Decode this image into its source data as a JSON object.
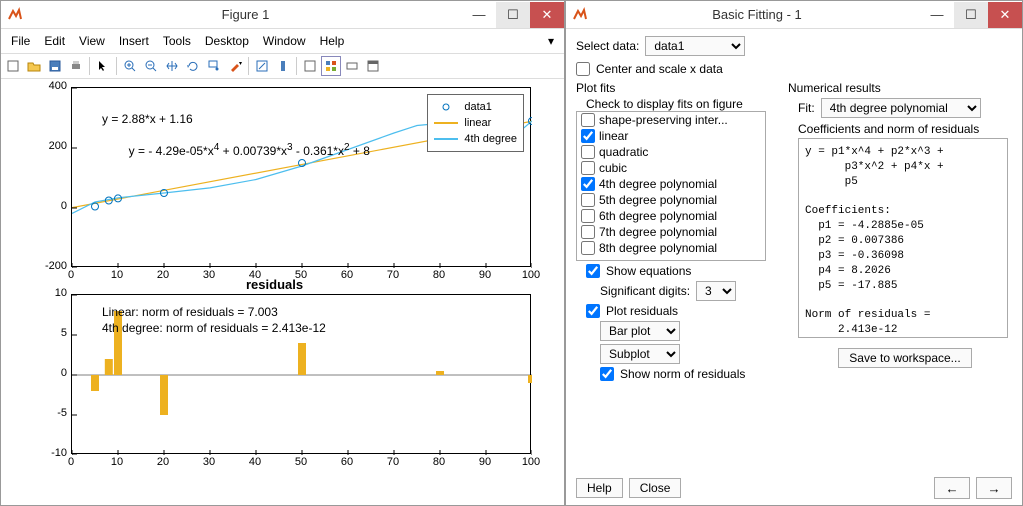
{
  "figure_window": {
    "title": "Figure 1",
    "menus": [
      "File",
      "Edit",
      "View",
      "Insert",
      "Tools",
      "Desktop",
      "Window",
      "Help"
    ],
    "top_chart": {
      "xlim": [
        0,
        100
      ],
      "ylim": [
        -200,
        400
      ],
      "xticks": [
        0,
        10,
        20,
        30,
        40,
        50,
        60,
        70,
        80,
        90,
        100
      ],
      "yticks": [
        -200,
        0,
        200,
        400
      ],
      "data_points": [
        [
          5,
          5
        ],
        [
          8,
          25
        ],
        [
          10,
          32
        ],
        [
          20,
          50
        ],
        [
          50,
          150
        ],
        [
          80,
          280
        ],
        [
          100,
          290
        ]
      ],
      "linear_fit": [
        [
          0,
          1.16
        ],
        [
          100,
          289.16
        ]
      ],
      "poly_fit": [
        [
          0,
          -18
        ],
        [
          5,
          20
        ],
        [
          10,
          34
        ],
        [
          20,
          50
        ],
        [
          30,
          67
        ],
        [
          40,
          95
        ],
        [
          50,
          140
        ],
        [
          60,
          195
        ],
        [
          70,
          250
        ],
        [
          75,
          275
        ],
        [
          80,
          282
        ],
        [
          85,
          260
        ],
        [
          90,
          230
        ],
        [
          95,
          225
        ],
        [
          100,
          290
        ]
      ],
      "legend": {
        "items": [
          {
            "kind": "marker",
            "label": "data1",
            "color": "#0072bd"
          },
          {
            "kind": "line",
            "label": "linear",
            "color": "#edb120"
          },
          {
            "kind": "line",
            "label": "4th degree",
            "color": "#4dbeee"
          }
        ]
      },
      "eq1": "y = 2.88*x + 1.16",
      "eq2_a": "y = - 4.29e-05*x",
      "eq2_exp1": "4",
      "eq2_b": " + 0.00739*x",
      "eq2_exp2": "3",
      "eq2_c": " - 0.361*x",
      "eq2_exp3": "2",
      "eq2_d": " + 8"
    },
    "residuals": {
      "title": "residuals",
      "xlim": [
        0,
        100
      ],
      "ylim": [
        -10,
        10
      ],
      "xticks": [
        0,
        10,
        20,
        30,
        40,
        50,
        60,
        70,
        80,
        90,
        100
      ],
      "yticks": [
        -10,
        -5,
        0,
        5,
        10
      ],
      "bars": [
        [
          5,
          -2
        ],
        [
          8,
          2
        ],
        [
          10,
          8
        ],
        [
          20,
          -5
        ],
        [
          50,
          4
        ],
        [
          80,
          0.5
        ],
        [
          100,
          -1
        ]
      ],
      "bar_color": "#edb120",
      "text1": "Linear: norm of residuals = 7.003",
      "text2": "4th degree: norm of residuals = 2.413e-12"
    }
  },
  "fitting_window": {
    "title": "Basic Fitting - 1",
    "select_data_label": "Select data:",
    "select_data_value": "data1",
    "center_scale_label": "Center and scale x data",
    "plot_fits_label": "Plot fits",
    "check_label": "Check to display fits on figure",
    "fits": [
      {
        "label": "shape-preserving inter...",
        "checked": false
      },
      {
        "label": "linear",
        "checked": true
      },
      {
        "label": "quadratic",
        "checked": false
      },
      {
        "label": "cubic",
        "checked": false
      },
      {
        "label": "4th degree polynomial",
        "checked": true
      },
      {
        "label": "5th degree polynomial",
        "checked": false
      },
      {
        "label": "6th degree polynomial",
        "checked": false
      },
      {
        "label": "7th degree polynomial",
        "checked": false
      },
      {
        "label": "8th degree polynomial",
        "checked": false
      }
    ],
    "show_eq_label": "Show equations",
    "sig_digits_label": "Significant digits:",
    "sig_digits_value": "3",
    "plot_resid_label": "Plot residuals",
    "resid_type": "Bar plot",
    "resid_loc": "Subplot",
    "show_norm_label": "Show norm of residuals",
    "numerical_label": "Numerical results",
    "fit_label": "Fit:",
    "fit_value": "4th degree polynomial",
    "coeff_label": "Coefficients and norm of residuals",
    "results_text": "y = p1*x^4 + p2*x^3 +\n      p3*x^2 + p4*x +\n      p5\n\nCoefficients:\n  p1 = -4.2885e-05\n  p2 = 0.007386\n  p3 = -0.36098\n  p4 = 8.2026\n  p5 = -17.885\n\nNorm of residuals =\n     2.413e-12",
    "save_btn": "Save to workspace...",
    "help_btn": "Help",
    "close_btn": "Close"
  }
}
